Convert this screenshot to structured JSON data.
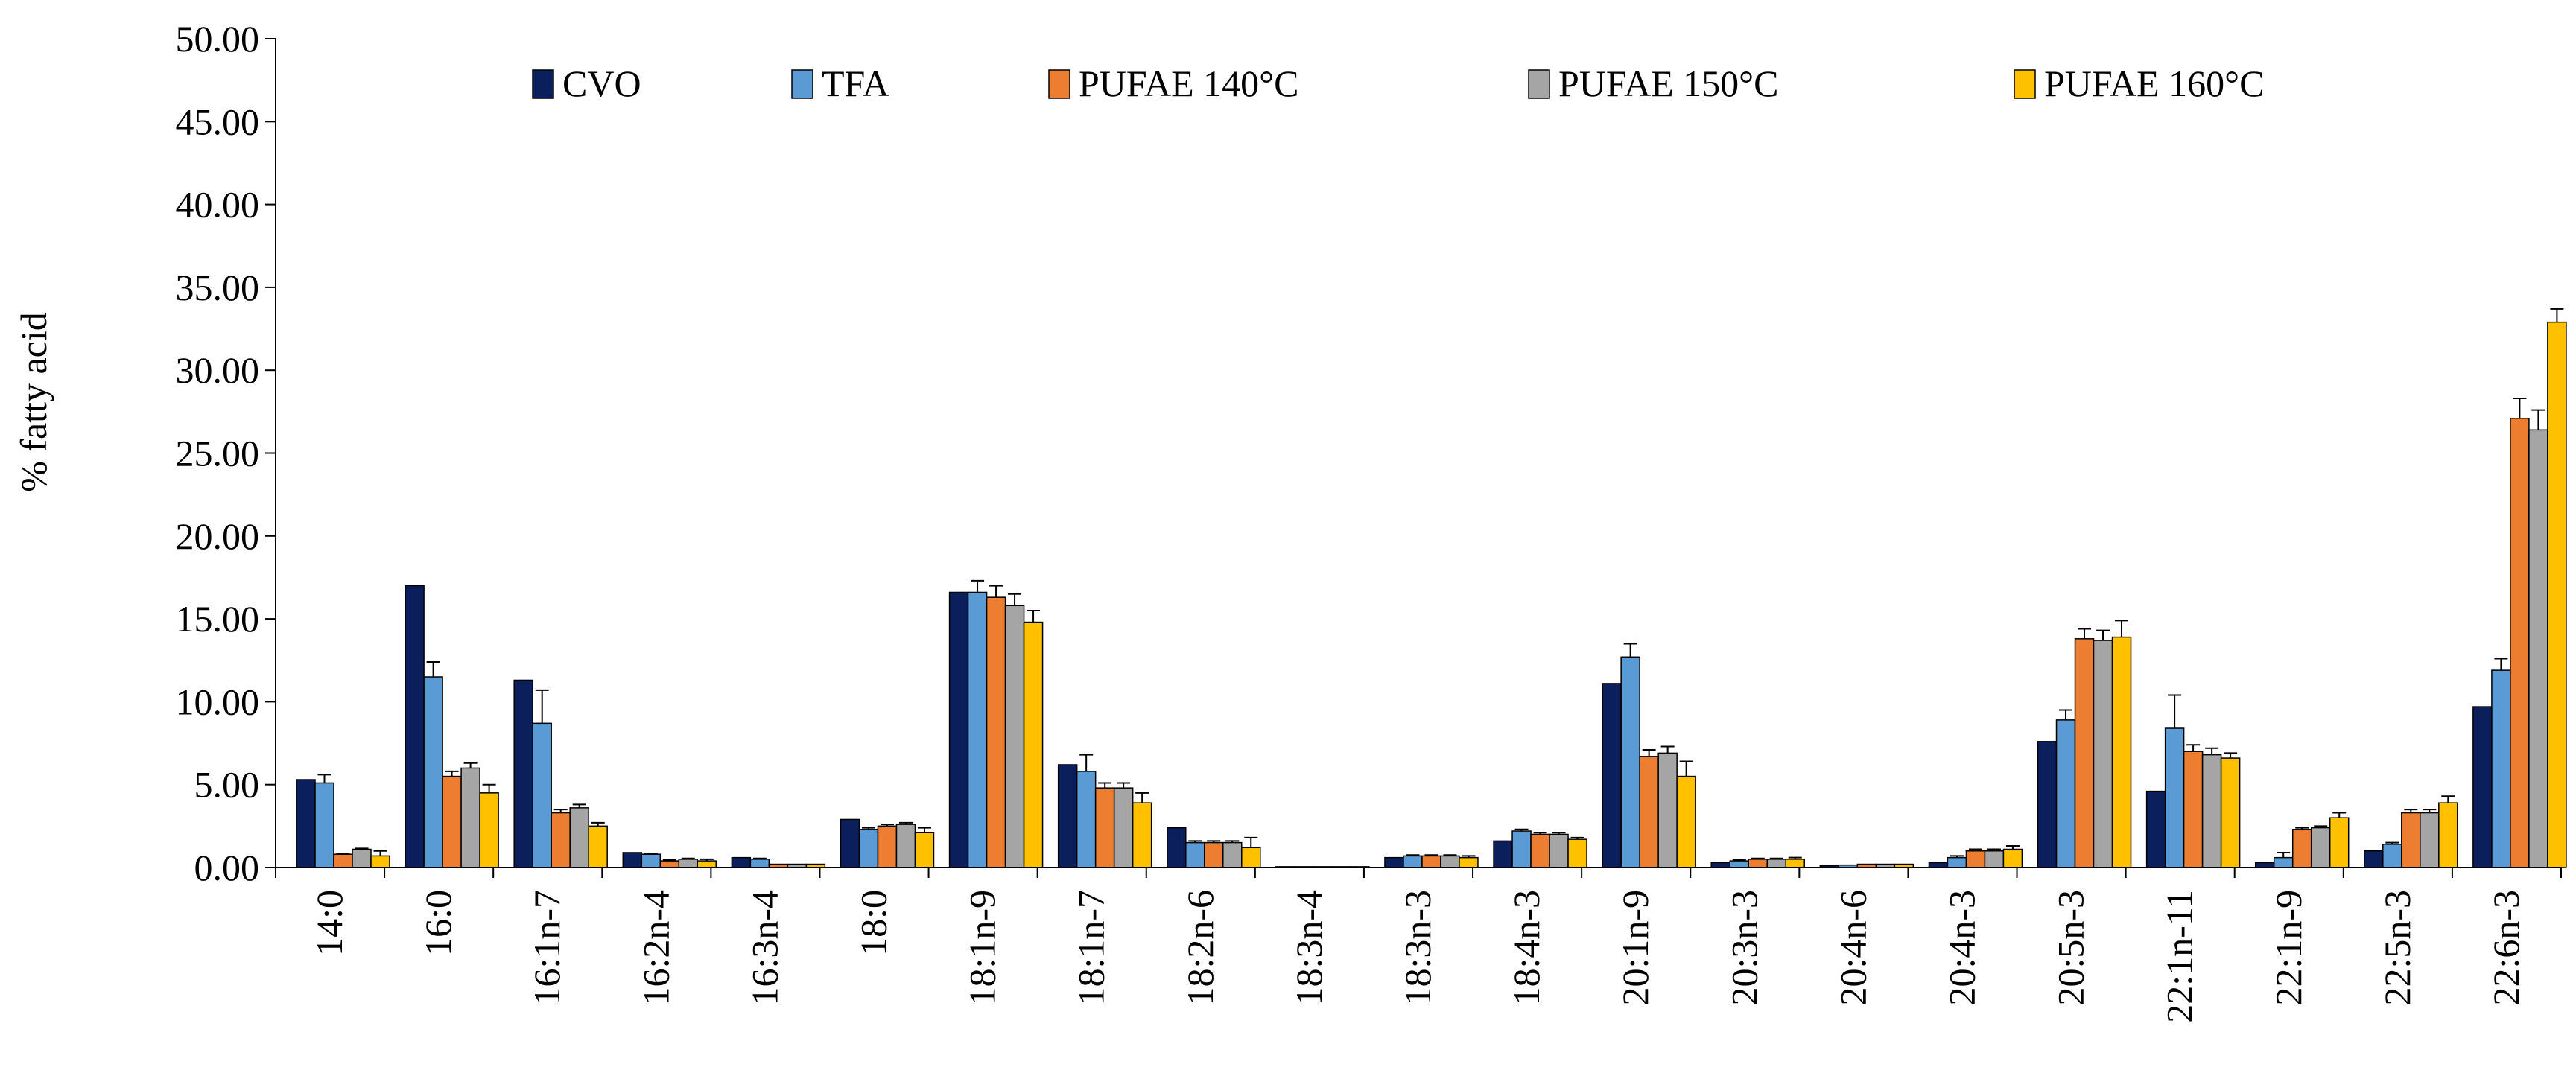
{
  "chart_data": {
    "type": "bar",
    "title": "",
    "xlabel": "",
    "ylabel": "% fatty acid",
    "ylim": [
      0,
      50
    ],
    "ytick_step": 5,
    "ytick_labels": [
      "0.00",
      "5.00",
      "10.00",
      "15.00",
      "20.00",
      "25.00",
      "30.00",
      "35.00",
      "40.00",
      "45.00",
      "50.00"
    ],
    "grid": false,
    "legend_position": "top",
    "categories": [
      "14:0",
      "16:0",
      "16:1n-7",
      "16:2n-4",
      "16:3n-4",
      "18:0",
      "18:1n-9",
      "18:1n-7",
      "18:2n-6",
      "18:3n-4",
      "18:3n-3",
      "18:4n-3",
      "20:1n-9",
      "20:3n-3",
      "20:4n-6",
      "20:4n-3",
      "20:5n-3",
      "22:1n-11",
      "22:1n-9",
      "22:5n-3",
      "22:6n-3"
    ],
    "series": [
      {
        "name": "CVO",
        "color": "#0b1f5c",
        "values": [
          5.3,
          17.0,
          11.3,
          0.9,
          0.6,
          2.9,
          16.6,
          6.2,
          2.4,
          0.05,
          0.6,
          1.6,
          11.1,
          0.3,
          0.1,
          0.3,
          7.6,
          4.6,
          0.3,
          1.0,
          9.7
        ],
        "errors": [
          0,
          0,
          0,
          0,
          0,
          0,
          0,
          0,
          0,
          0,
          0,
          0,
          0,
          0,
          0,
          0,
          0,
          0,
          0,
          0,
          0
        ]
      },
      {
        "name": "TFA",
        "color": "#5b9bd5",
        "values": [
          5.1,
          11.5,
          8.7,
          0.8,
          0.5,
          2.3,
          16.6,
          5.8,
          1.5,
          0.05,
          0.7,
          2.2,
          12.7,
          0.4,
          0.15,
          0.6,
          8.9,
          8.4,
          0.6,
          1.4,
          11.9
        ],
        "errors": [
          0.5,
          0.9,
          2.0,
          0.05,
          0.05,
          0.1,
          0.7,
          1.0,
          0.1,
          0.02,
          0.05,
          0.1,
          0.8,
          0.05,
          0.02,
          0.1,
          0.6,
          2.0,
          0.3,
          0.1,
          0.7
        ]
      },
      {
        "name": "PUFAE 140°C",
        "color": "#ed7d31",
        "values": [
          0.8,
          5.5,
          3.3,
          0.4,
          0.2,
          2.5,
          16.3,
          4.8,
          1.5,
          0.05,
          0.7,
          2.0,
          6.7,
          0.5,
          0.2,
          1.0,
          13.8,
          7.0,
          2.3,
          3.3,
          27.1
        ],
        "errors": [
          0.05,
          0.3,
          0.2,
          0.05,
          0.02,
          0.1,
          0.7,
          0.3,
          0.1,
          0.02,
          0.05,
          0.1,
          0.4,
          0.05,
          0.02,
          0.1,
          0.6,
          0.4,
          0.1,
          0.2,
          1.2
        ]
      },
      {
        "name": "PUFAE 150°C",
        "color": "#a5a5a5",
        "values": [
          1.1,
          6.0,
          3.6,
          0.5,
          0.2,
          2.6,
          15.8,
          4.8,
          1.5,
          0.05,
          0.7,
          2.0,
          6.9,
          0.5,
          0.2,
          1.0,
          13.7,
          6.8,
          2.4,
          3.3,
          26.4
        ],
        "errors": [
          0.05,
          0.3,
          0.2,
          0.05,
          0.02,
          0.1,
          0.7,
          0.3,
          0.1,
          0.02,
          0.05,
          0.1,
          0.4,
          0.05,
          0.02,
          0.1,
          0.6,
          0.4,
          0.1,
          0.2,
          1.2
        ]
      },
      {
        "name": "PUFAE 160°C",
        "color": "#ffc000",
        "values": [
          0.7,
          4.5,
          2.5,
          0.4,
          0.2,
          2.1,
          14.8,
          3.9,
          1.2,
          0.05,
          0.6,
          1.7,
          5.5,
          0.5,
          0.2,
          1.1,
          13.9,
          6.6,
          3.0,
          3.9,
          32.9
        ],
        "errors": [
          0.3,
          0.5,
          0.2,
          0.1,
          0.02,
          0.3,
          0.7,
          0.6,
          0.6,
          0.02,
          0.1,
          0.1,
          0.9,
          0.1,
          0.02,
          0.2,
          1.0,
          0.3,
          0.3,
          0.4,
          0.8
        ]
      }
    ]
  }
}
